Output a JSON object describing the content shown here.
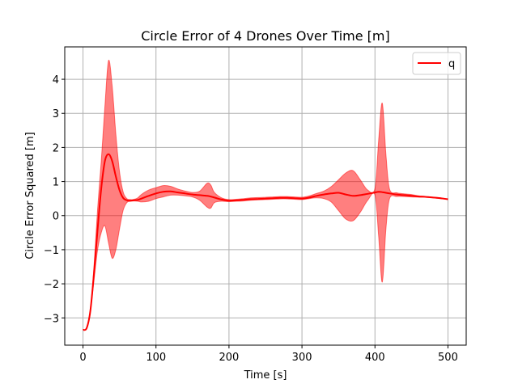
{
  "chart_data": {
    "type": "line",
    "title": "Circle Error of 4 Drones Over Time [m]",
    "xlabel": "Time [s]",
    "ylabel": "Circle Error Squared [m]",
    "xlim": [
      -25,
      525
    ],
    "ylim": [
      -3.8,
      4.95
    ],
    "xticks": [
      0,
      100,
      200,
      300,
      400,
      500
    ],
    "yticks": [
      -3,
      -2,
      -1,
      0,
      1,
      2,
      3,
      4
    ],
    "grid": true,
    "legend": "top-right",
    "colors": {
      "line": "#ff0000",
      "band": "#ff0000",
      "band_edge": "#ff0000",
      "grid": "#b0b0b0"
    },
    "series": [
      {
        "name": "q",
        "x": [
          0,
          5,
          10,
          15,
          20,
          25,
          30,
          35,
          40,
          45,
          50,
          55,
          60,
          65,
          70,
          75,
          80,
          90,
          100,
          110,
          120,
          130,
          140,
          150,
          160,
          170,
          175,
          180,
          190,
          200,
          210,
          220,
          230,
          240,
          250,
          260,
          270,
          280,
          290,
          300,
          310,
          320,
          330,
          340,
          350,
          360,
          370,
          380,
          390,
          400,
          405,
          410,
          415,
          420,
          430,
          440,
          450,
          460,
          470,
          480,
          490,
          500
        ],
        "mean": [
          -3.35,
          -3.3,
          -2.8,
          -1.7,
          -0.4,
          0.8,
          1.6,
          1.8,
          1.6,
          1.15,
          0.75,
          0.52,
          0.45,
          0.44,
          0.45,
          0.46,
          0.5,
          0.58,
          0.65,
          0.7,
          0.71,
          0.68,
          0.65,
          0.62,
          0.6,
          0.58,
          0.56,
          0.53,
          0.47,
          0.44,
          0.45,
          0.46,
          0.48,
          0.49,
          0.5,
          0.51,
          0.52,
          0.52,
          0.51,
          0.5,
          0.53,
          0.58,
          0.62,
          0.65,
          0.67,
          0.62,
          0.58,
          0.6,
          0.64,
          0.68,
          0.7,
          0.69,
          0.67,
          0.65,
          0.62,
          0.6,
          0.58,
          0.56,
          0.55,
          0.53,
          0.51,
          0.48
        ],
        "upper": [
          -3.35,
          -3.3,
          -2.8,
          -1.5,
          0.2,
          1.6,
          3.2,
          4.55,
          3.8,
          2.4,
          1.3,
          0.7,
          0.5,
          0.47,
          0.48,
          0.52,
          0.62,
          0.75,
          0.82,
          0.88,
          0.86,
          0.78,
          0.72,
          0.68,
          0.72,
          0.95,
          0.9,
          0.68,
          0.52,
          0.47,
          0.48,
          0.5,
          0.52,
          0.53,
          0.54,
          0.55,
          0.56,
          0.56,
          0.55,
          0.54,
          0.58,
          0.65,
          0.72,
          0.85,
          1.05,
          1.25,
          1.32,
          1.05,
          0.75,
          0.8,
          2.2,
          3.3,
          1.8,
          0.78,
          0.67,
          0.64,
          0.62,
          0.58,
          0.56,
          0.54,
          0.52,
          0.48
        ],
        "lower": [
          -3.35,
          -3.3,
          -2.8,
          -1.9,
          -1.0,
          -0.5,
          -0.3,
          -0.8,
          -1.25,
          -1.0,
          -0.4,
          0.15,
          0.38,
          0.42,
          0.43,
          0.42,
          0.4,
          0.42,
          0.5,
          0.55,
          0.6,
          0.6,
          0.58,
          0.55,
          0.45,
          0.25,
          0.22,
          0.38,
          0.42,
          0.41,
          0.42,
          0.43,
          0.45,
          0.46,
          0.47,
          0.48,
          0.49,
          0.49,
          0.48,
          0.47,
          0.5,
          0.52,
          0.5,
          0.4,
          0.15,
          -0.1,
          -0.15,
          0.1,
          0.45,
          0.6,
          -0.6,
          -1.95,
          -0.4,
          0.5,
          0.56,
          0.56,
          0.55,
          0.54,
          0.54,
          0.52,
          0.5,
          0.48
        ]
      }
    ]
  }
}
